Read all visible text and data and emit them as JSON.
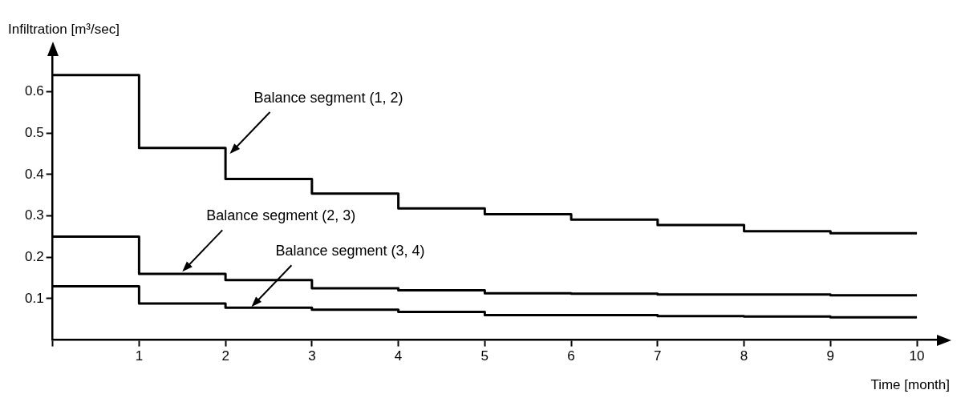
{
  "chart_data": {
    "type": "step",
    "xlabel": "Time [month]",
    "ylabel": "Infiltration [m³/sec]",
    "x": [
      0,
      1,
      2,
      3,
      4,
      5,
      6,
      7,
      8,
      9,
      10
    ],
    "series": [
      {
        "color": "#000000",
        "values": [
          0.64,
          0.464,
          0.389,
          0.354,
          0.318,
          0.304,
          0.291,
          0.278,
          0.263,
          0.258,
          0.258
        ]
      },
      {
        "color": "#000000",
        "values": [
          0.25,
          0.16,
          0.145,
          0.125,
          0.12,
          0.113,
          0.112,
          0.11,
          0.11,
          0.108,
          0.108
        ]
      },
      {
        "color": "#000000",
        "values": [
          0.13,
          0.088,
          0.078,
          0.073,
          0.068,
          0.06,
          0.06,
          0.058,
          0.057,
          0.055,
          0.055
        ]
      }
    ],
    "annotations": [
      {
        "text": "Balance segment (1, 2)",
        "x": 2.05,
        "y": 0.45
      },
      {
        "text": "Balance segment (2, 3)",
        "x": 1.5,
        "y": 0.165
      },
      {
        "text": "Balance segment (3, 4)",
        "x": 2.3,
        "y": 0.08
      }
    ],
    "xlim": [
      0,
      10.25
    ],
    "ylim": [
      0,
      0.69
    ],
    "xticks": [
      {
        "value": 0,
        "label": null
      },
      1,
      2,
      3,
      4,
      5,
      6,
      7,
      8,
      9,
      10
    ],
    "yticks": [
      0.1,
      0.2,
      0.3,
      0.4,
      0.5,
      0.6
    ],
    "grid": false,
    "legend": false,
    "marker": "none",
    "line_style": "solid"
  }
}
